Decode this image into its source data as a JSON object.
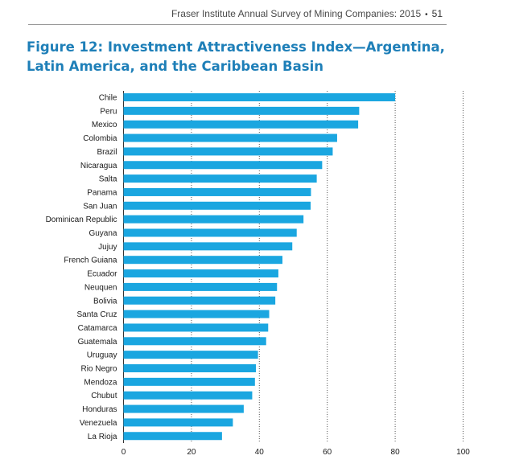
{
  "page_header": {
    "running_title": "Fraser Institute Annual Survey of Mining Companies: 2015",
    "bullet": "•",
    "page_number": "51"
  },
  "figure": {
    "title": "Figure 12: Investment Attractiveness Index—Argentina, Latin America, and the Caribbean Basin"
  },
  "colors": {
    "bar": "#1aa6e0",
    "title": "#1e7fb8",
    "grid": "#555555"
  },
  "chart_data": {
    "type": "bar",
    "orientation": "horizontal",
    "categories": [
      "Chile",
      "Peru",
      "Mexico",
      "Colombia",
      "Brazil",
      "Nicaragua",
      "Salta",
      "Panama",
      "San Juan",
      "Dominican Republic",
      "Guyana",
      "Jujuy",
      "French Guiana",
      "Ecuador",
      "Neuquen",
      "Bolivia",
      "Santa Cruz",
      "Catamarca",
      "Guatemala",
      "Uruguay",
      "Rio Negro",
      "Mendoza",
      "Chubut",
      "Honduras",
      "Venezuela",
      "La Rioja"
    ],
    "values": [
      80.0,
      69.4,
      69.1,
      62.9,
      61.6,
      58.5,
      56.9,
      55.2,
      55.1,
      53.0,
      51.0,
      49.7,
      46.8,
      45.6,
      45.2,
      44.7,
      42.9,
      42.6,
      42.0,
      39.6,
      39.0,
      38.7,
      37.9,
      35.4,
      32.2,
      29.0
    ],
    "xlim": [
      0,
      100
    ],
    "xticks": [
      "0",
      "20",
      "40",
      "60",
      "80",
      "100"
    ],
    "grid": "vertical dotted",
    "xlabel": "",
    "ylabel": ""
  }
}
